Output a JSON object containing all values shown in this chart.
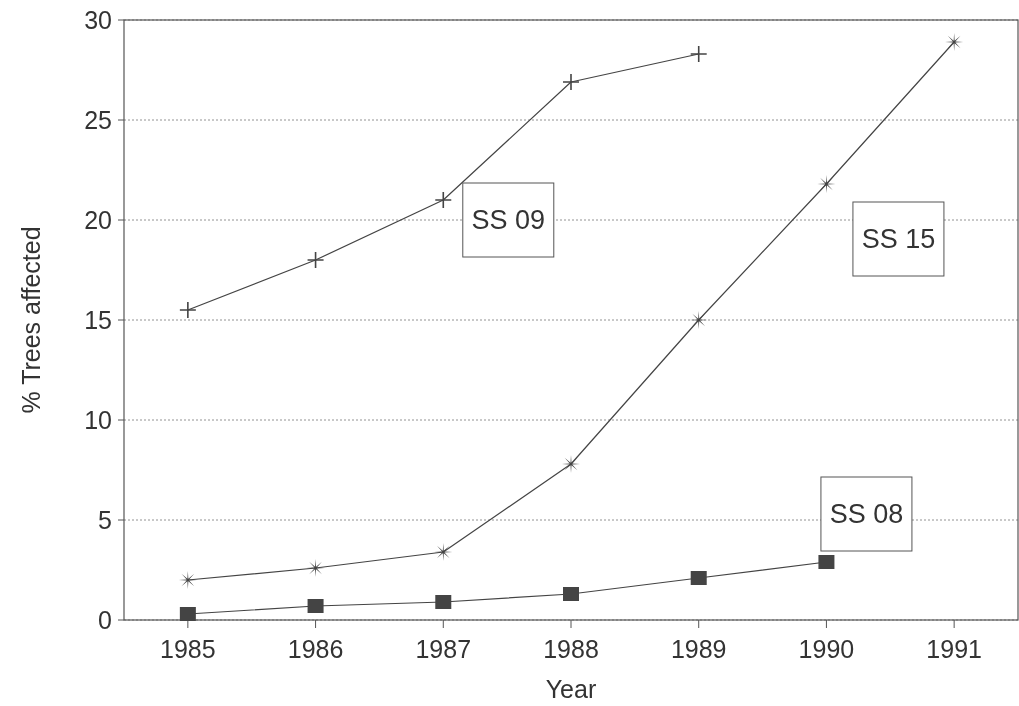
{
  "chart_data": {
    "type": "line",
    "xlabel": "Year",
    "ylabel": "% Trees affected",
    "categories": [
      "1985",
      "1986",
      "1987",
      "1988",
      "1989",
      "1990",
      "1991"
    ],
    "ylim": [
      0,
      30
    ],
    "yticks": [
      0,
      5,
      10,
      15,
      20,
      25,
      30
    ],
    "grid": "y",
    "line_style": "solid",
    "series": [
      {
        "name": "SS 09",
        "color": "#444444",
        "marker": "cross",
        "values": [
          15.5,
          18,
          21,
          26.9,
          28.3,
          null,
          null
        ]
      },
      {
        "name": "SS 15",
        "color": "#444444",
        "marker": "star",
        "values": [
          2,
          2.6,
          3.4,
          7.8,
          15,
          21.8,
          28.9
        ]
      },
      {
        "name": "SS 08",
        "color": "#444444",
        "marker": "square",
        "values": [
          0.3,
          0.7,
          0.9,
          1.3,
          2.1,
          2.9,
          null
        ]
      }
    ]
  }
}
